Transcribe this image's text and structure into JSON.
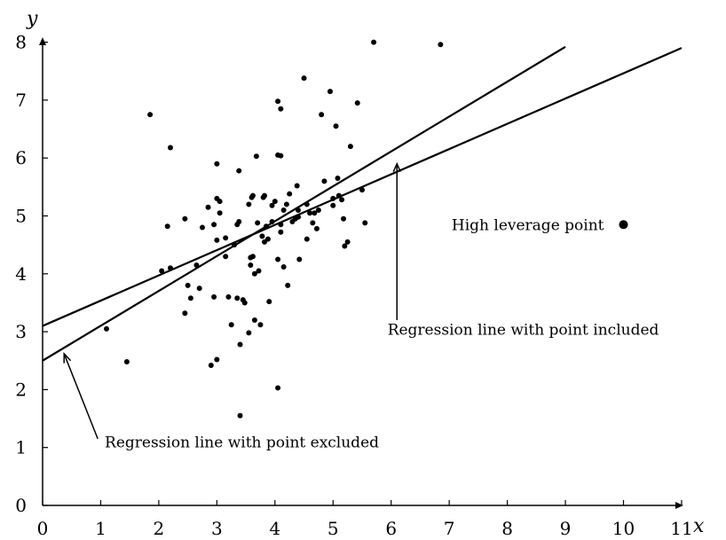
{
  "chart_data": {
    "type": "scatter",
    "title": "",
    "xlabel": "x",
    "ylabel": "y",
    "xlim": [
      0,
      11
    ],
    "ylim": [
      0,
      8
    ],
    "xticks": [
      "0",
      "1",
      "2",
      "3",
      "4",
      "5",
      "6",
      "7",
      "8",
      "9",
      "10",
      "11"
    ],
    "yticks": [
      "0",
      "1",
      "2",
      "3",
      "4",
      "5",
      "6",
      "7",
      "8"
    ],
    "grid": false,
    "points": [
      [
        1.1,
        3.05
      ],
      [
        1.45,
        2.48
      ],
      [
        1.85,
        6.75
      ],
      [
        2.15,
        4.82
      ],
      [
        2.2,
        6.18
      ],
      [
        2.05,
        4.05
      ],
      [
        2.2,
        4.1
      ],
      [
        2.45,
        4.95
      ],
      [
        2.5,
        3.8
      ],
      [
        2.45,
        3.32
      ],
      [
        2.55,
        3.58
      ],
      [
        2.65,
        4.15
      ],
      [
        2.7,
        3.75
      ],
      [
        2.75,
        4.8
      ],
      [
        2.85,
        5.15
      ],
      [
        2.9,
        2.42
      ],
      [
        2.95,
        4.85
      ],
      [
        2.95,
        3.6
      ],
      [
        3.0,
        5.9
      ],
      [
        3.0,
        5.3
      ],
      [
        3.0,
        4.58
      ],
      [
        3.0,
        2.52
      ],
      [
        3.05,
        5.25
      ],
      [
        3.05,
        5.05
      ],
      [
        3.15,
        4.62
      ],
      [
        3.15,
        4.3
      ],
      [
        3.2,
        3.6
      ],
      [
        3.25,
        3.12
      ],
      [
        3.3,
        4.5
      ],
      [
        3.35,
        3.58
      ],
      [
        3.35,
        4.85
      ],
      [
        3.38,
        5.78
      ],
      [
        3.38,
        4.9
      ],
      [
        3.4,
        2.78
      ],
      [
        3.4,
        1.55
      ],
      [
        3.45,
        3.55
      ],
      [
        3.48,
        3.5
      ],
      [
        3.55,
        5.2
      ],
      [
        3.55,
        2.98
      ],
      [
        3.58,
        4.28
      ],
      [
        3.58,
        4.15
      ],
      [
        3.6,
        5.32
      ],
      [
        3.62,
        5.35
      ],
      [
        3.62,
        4.3
      ],
      [
        3.65,
        4.0
      ],
      [
        3.65,
        3.2
      ],
      [
        3.68,
        6.03
      ],
      [
        3.7,
        4.88
      ],
      [
        3.72,
        4.05
      ],
      [
        3.75,
        3.12
      ],
      [
        3.78,
        4.65
      ],
      [
        3.8,
        5.32
      ],
      [
        3.82,
        5.35
      ],
      [
        3.82,
        4.55
      ],
      [
        3.85,
        4.82
      ],
      [
        3.88,
        4.6
      ],
      [
        3.9,
        3.52
      ],
      [
        3.95,
        4.9
      ],
      [
        3.95,
        5.18
      ],
      [
        4.0,
        5.25
      ],
      [
        4.05,
        6.98
      ],
      [
        4.05,
        6.05
      ],
      [
        4.05,
        4.25
      ],
      [
        4.05,
        2.03
      ],
      [
        4.1,
        6.85
      ],
      [
        4.1,
        6.04
      ],
      [
        4.1,
        4.72
      ],
      [
        4.1,
        4.85
      ],
      [
        4.15,
        5.1
      ],
      [
        4.15,
        4.12
      ],
      [
        4.2,
        5.2
      ],
      [
        4.22,
        3.8
      ],
      [
        4.25,
        5.38
      ],
      [
        4.3,
        4.9
      ],
      [
        4.35,
        4.95
      ],
      [
        4.38,
        5.52
      ],
      [
        4.4,
        5.1
      ],
      [
        4.4,
        4.98
      ],
      [
        4.42,
        4.25
      ],
      [
        4.5,
        7.38
      ],
      [
        4.55,
        5.2
      ],
      [
        4.55,
        4.6
      ],
      [
        4.6,
        5.05
      ],
      [
        4.65,
        4.88
      ],
      [
        4.68,
        5.05
      ],
      [
        4.72,
        4.78
      ],
      [
        4.75,
        5.1
      ],
      [
        4.8,
        6.75
      ],
      [
        4.85,
        5.6
      ],
      [
        4.95,
        7.15
      ],
      [
        5.0,
        5.3
      ],
      [
        5.0,
        5.18
      ],
      [
        5.05,
        6.55
      ],
      [
        5.08,
        5.65
      ],
      [
        5.1,
        5.35
      ],
      [
        5.15,
        5.28
      ],
      [
        5.18,
        4.95
      ],
      [
        5.2,
        4.48
      ],
      [
        5.25,
        4.55
      ],
      [
        5.3,
        6.2
      ],
      [
        5.42,
        6.95
      ],
      [
        5.5,
        5.45
      ],
      [
        5.55,
        4.88
      ],
      [
        5.7,
        8.0
      ],
      [
        6.85,
        7.96
      ]
    ],
    "high_leverage_point": {
      "x": 10.0,
      "y": 4.85,
      "label": "High leverage point"
    },
    "lines": [
      {
        "label": "Regression line with point included",
        "x": [
          0,
          11
        ],
        "y": [
          3.1,
          7.9
        ]
      },
      {
        "label": "Regression line with point excluded",
        "x": [
          0,
          9
        ],
        "y": [
          2.5,
          7.92
        ]
      }
    ]
  }
}
